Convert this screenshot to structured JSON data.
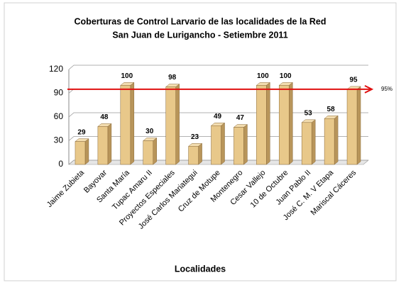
{
  "chart_data": {
    "type": "bar",
    "title": "Coberturas de Control Larvario de las localidades de la Red",
    "subtitle": "San Juan de Lurigancho - Setiembre  2011",
    "x_label": "Localidades",
    "categories": [
      "Jaime Zubieta",
      "Bayovar",
      "Santa María",
      "Tupac Amaru II",
      "Proyectos Especiales",
      "José Carlos Mariategui",
      "Cruz de Motupe",
      "Montenegro",
      "Cesar Vallejo",
      "10 de Octubre",
      "Juan Pablo II",
      "José C. M. V Etapa",
      "Mariscal Cáceres"
    ],
    "values": [
      29,
      48,
      100,
      30,
      98,
      23,
      49,
      47,
      100,
      100,
      53,
      58,
      95
    ],
    "color": "#e8c88a",
    "ylim": [
      0,
      120
    ],
    "yticks": [
      0,
      30,
      60,
      90,
      120
    ],
    "grid": true,
    "target": {
      "value": 95,
      "label": "95%",
      "color": "#e01010"
    }
  }
}
